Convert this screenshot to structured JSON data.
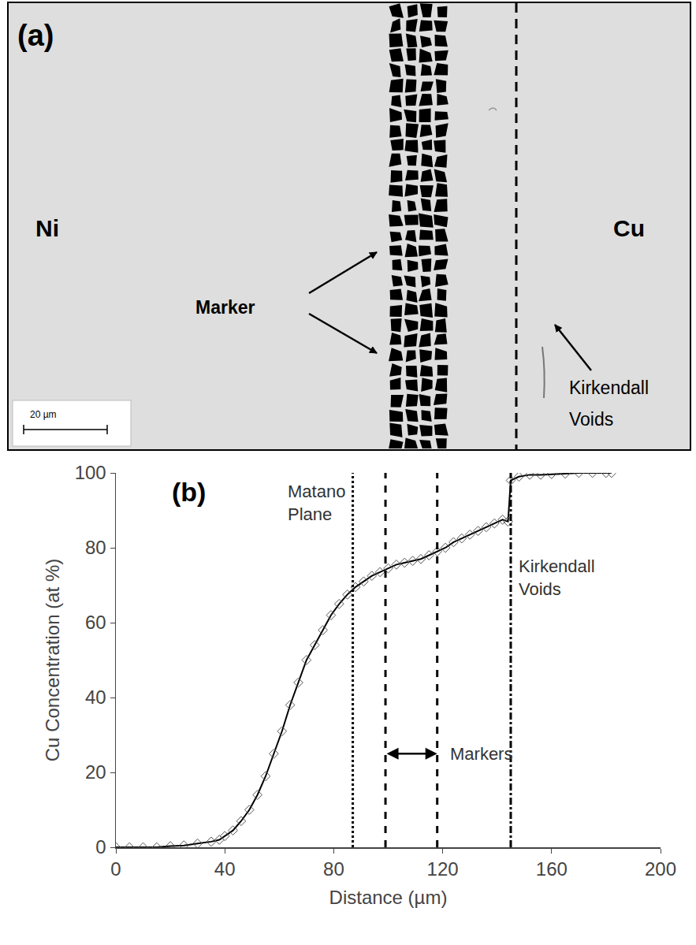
{
  "panel_a": {
    "label": "(a)",
    "left_metal": "Ni",
    "right_metal": "Cu",
    "marker_label": "Marker",
    "voids_label": "Kirkendall Voids",
    "scale_bar": "20 µm"
  },
  "chart_data": {
    "type": "scatter",
    "panel_label": "(b)",
    "x_label": "Distance (µm)",
    "y_label": "Cu Concentration (at %)",
    "x": [
      0,
      5,
      10,
      15,
      20,
      25,
      30,
      35,
      38,
      40,
      43,
      46,
      49,
      52,
      55,
      58,
      61,
      64,
      67,
      70,
      73,
      76,
      79,
      82,
      85,
      88,
      91,
      94,
      97,
      100,
      103,
      106,
      109,
      112,
      115,
      118,
      121,
      124,
      127,
      130,
      133,
      136,
      139,
      142,
      144,
      145,
      148,
      152,
      156,
      160,
      165,
      170,
      175,
      180,
      182
    ],
    "values": [
      0,
      0,
      0,
      0,
      0.3,
      0.5,
      1,
      1.5,
      2,
      3,
      4.5,
      7,
      10,
      14,
      19,
      25,
      31,
      38,
      44,
      50,
      54,
      58,
      62,
      65,
      67.5,
      69.5,
      71,
      72.5,
      73.5,
      74.5,
      75.5,
      76,
      76.5,
      77,
      78,
      79,
      80,
      81.5,
      82.5,
      83.5,
      84.5,
      85.5,
      86.5,
      87.5,
      87,
      98,
      99,
      99.5,
      99.5,
      99.7,
      99.8,
      100,
      100,
      100,
      100
    ],
    "color": "#000000",
    "marker": "diamond-open",
    "line_style": "solid",
    "xlim": [
      0,
      200
    ],
    "xticks": [
      0,
      40,
      80,
      120,
      160,
      200
    ],
    "ylim": [
      0,
      100
    ],
    "yticks": [
      0,
      20,
      40,
      60,
      80,
      100
    ],
    "grid": false,
    "reference_lines": [
      {
        "name": "Matano Plane",
        "x": [
          87
        ],
        "line_style": "dot"
      },
      {
        "name": "Markers",
        "x": [
          99,
          118
        ],
        "line_style": "dash"
      },
      {
        "name": "Kirkendall Voids",
        "x": [
          145
        ],
        "line_style": "dashdot"
      }
    ]
  }
}
